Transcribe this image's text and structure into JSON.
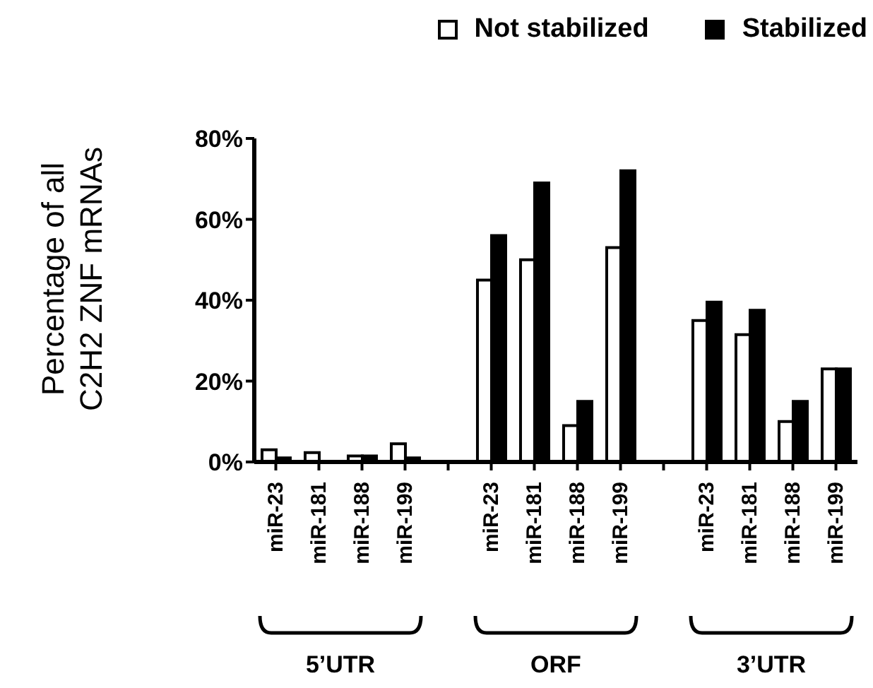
{
  "chart_data": {
    "type": "bar",
    "ylabel": "Percentage of all C2H2 ZNF mRNAs",
    "categories": [
      "miR-23",
      "miR-181",
      "miR-188",
      "miR-199",
      null,
      "miR-23",
      "miR-181",
      "miR-188",
      "miR-199",
      null,
      "miR-23",
      "miR-181",
      "miR-188",
      "miR-199"
    ],
    "series": [
      {
        "name": "Not stabilized",
        "color": "#ffffff",
        "values": [
          3,
          2.3,
          1.5,
          4.5,
          null,
          45,
          50,
          9,
          53,
          null,
          35,
          31.5,
          10,
          23
        ]
      },
      {
        "name": "Stabilized",
        "color": "#000000",
        "values": [
          1,
          0,
          1.5,
          1,
          null,
          56,
          69,
          15,
          72,
          null,
          39.5,
          37.5,
          15,
          23
        ]
      }
    ],
    "ylim": [
      0,
      80
    ],
    "yticks": [
      {
        "value": 0,
        "label": "0%"
      },
      {
        "value": 20,
        "label": "20%"
      },
      {
        "value": 40,
        "label": "40%"
      },
      {
        "value": 60,
        "label": "60%"
      },
      {
        "value": 80,
        "label": "80%"
      }
    ],
    "annotations": [
      "5’UTR",
      "ORF",
      "3’UTR"
    ],
    "legend": "top",
    "grid": false
  }
}
